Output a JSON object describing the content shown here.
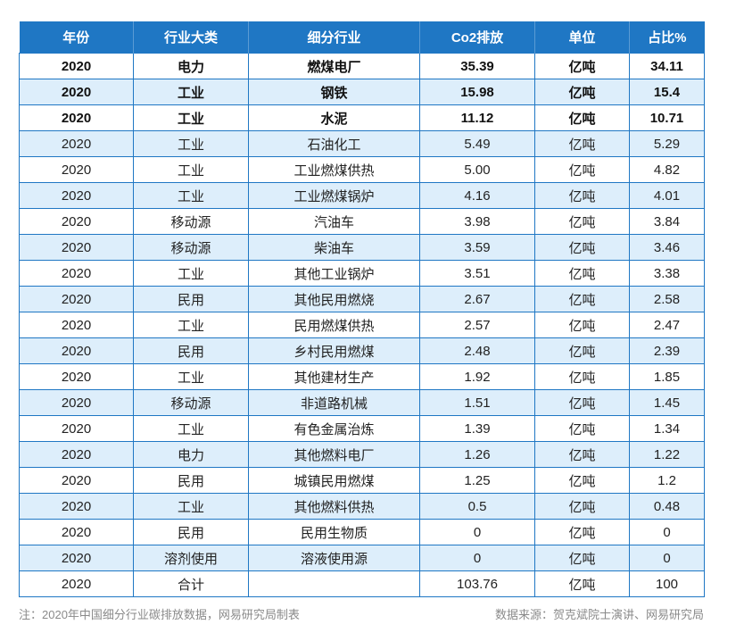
{
  "table": {
    "headers": [
      "年份",
      "行业大类",
      "细分行业",
      "Co2排放",
      "单位",
      "占比%"
    ],
    "rows": [
      [
        "2020",
        "电力",
        "燃煤电厂",
        "35.39",
        "亿吨",
        "34.11"
      ],
      [
        "2020",
        "工业",
        "钢铁",
        "15.98",
        "亿吨",
        "15.4"
      ],
      [
        "2020",
        "工业",
        "水泥",
        "11.12",
        "亿吨",
        "10.71"
      ],
      [
        "2020",
        "工业",
        "石油化工",
        "5.49",
        "亿吨",
        "5.29"
      ],
      [
        "2020",
        "工业",
        "工业燃煤供热",
        "5.00",
        "亿吨",
        "4.82"
      ],
      [
        "2020",
        "工业",
        "工业燃煤锅炉",
        "4.16",
        "亿吨",
        "4.01"
      ],
      [
        "2020",
        "移动源",
        "汽油车",
        "3.98",
        "亿吨",
        "3.84"
      ],
      [
        "2020",
        "移动源",
        "柴油车",
        "3.59",
        "亿吨",
        "3.46"
      ],
      [
        "2020",
        "工业",
        "其他工业锅炉",
        "3.51",
        "亿吨",
        "3.38"
      ],
      [
        "2020",
        "民用",
        "其他民用燃烧",
        "2.67",
        "亿吨",
        "2.58"
      ],
      [
        "2020",
        "工业",
        "民用燃煤供热",
        "2.57",
        "亿吨",
        "2.47"
      ],
      [
        "2020",
        "民用",
        "乡村民用燃煤",
        "2.48",
        "亿吨",
        "2.39"
      ],
      [
        "2020",
        "工业",
        "其他建材生产",
        "1.92",
        "亿吨",
        "1.85"
      ],
      [
        "2020",
        "移动源",
        "非道路机械",
        "1.51",
        "亿吨",
        "1.45"
      ],
      [
        "2020",
        "工业",
        "有色金属治炼",
        "1.39",
        "亿吨",
        "1.34"
      ],
      [
        "2020",
        "电力",
        "其他燃料电厂",
        "1.26",
        "亿吨",
        "1.22"
      ],
      [
        "2020",
        "民用",
        "城镇民用燃煤",
        "1.25",
        "亿吨",
        "1.2"
      ],
      [
        "2020",
        "工业",
        "其他燃料供热",
        "0.5",
        "亿吨",
        "0.48"
      ],
      [
        "2020",
        "民用",
        "民用生物质",
        "0",
        "亿吨",
        "0"
      ],
      [
        "2020",
        "溶剂使用",
        "溶液使用源",
        "0",
        "亿吨",
        "0"
      ],
      [
        "2020",
        "合计",
        "",
        "103.76",
        "亿吨",
        "100"
      ]
    ]
  },
  "footer": {
    "note": "注：2020年中国细分行业碳排放数据，网易研究局制表",
    "source": "数据来源：贺克斌院士演讲、网易研究局"
  },
  "colors": {
    "header_bg": "#1f77c4",
    "alt_row_bg": "#ddeefb",
    "border": "#1f77c4"
  }
}
